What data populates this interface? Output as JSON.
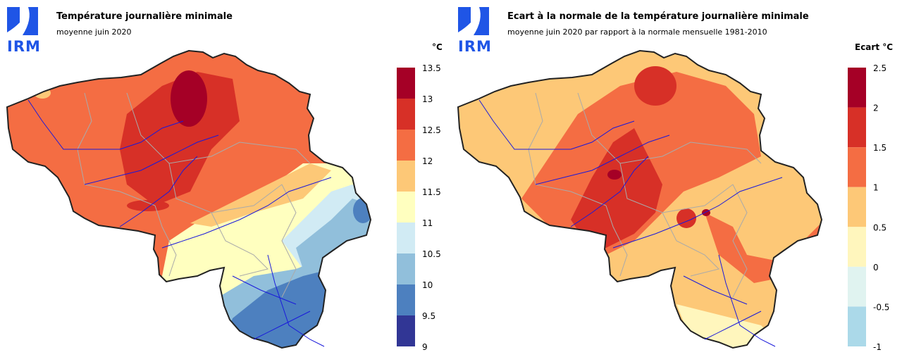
{
  "logo": {
    "text": "IRM",
    "color": "#1f55e6"
  },
  "panels": [
    {
      "title": "Température journalière minimale",
      "subtitle": "moyenne juin 2020",
      "unit": "°C",
      "legend": {
        "ticks": [
          "13.5",
          "13",
          "12.5",
          "12",
          "11.5",
          "11",
          "10.5",
          "10",
          "9.5",
          "9"
        ],
        "colors": [
          "#a50026",
          "#d73027",
          "#f46d43",
          "#fdc877",
          "#ffffbf",
          "#d1ebf4",
          "#91bfdb",
          "#4d80bf",
          "#313695"
        ]
      }
    },
    {
      "title": "Ecart à la normale de la température journalière minimale",
      "subtitle": "moyenne juin 2020 par rapport à la normale mensuelle 1981-2010",
      "unit": "Ecart  °C",
      "legend": {
        "ticks": [
          "2.5",
          "2",
          "1.5",
          "1",
          "0.5",
          "0",
          "-0.5",
          "-1"
        ],
        "colors": [
          "#a50026",
          "#d73027",
          "#f46d43",
          "#fdc877",
          "#fff6bd",
          "#e0f3f0",
          "#abd9e9"
        ]
      }
    }
  ]
}
